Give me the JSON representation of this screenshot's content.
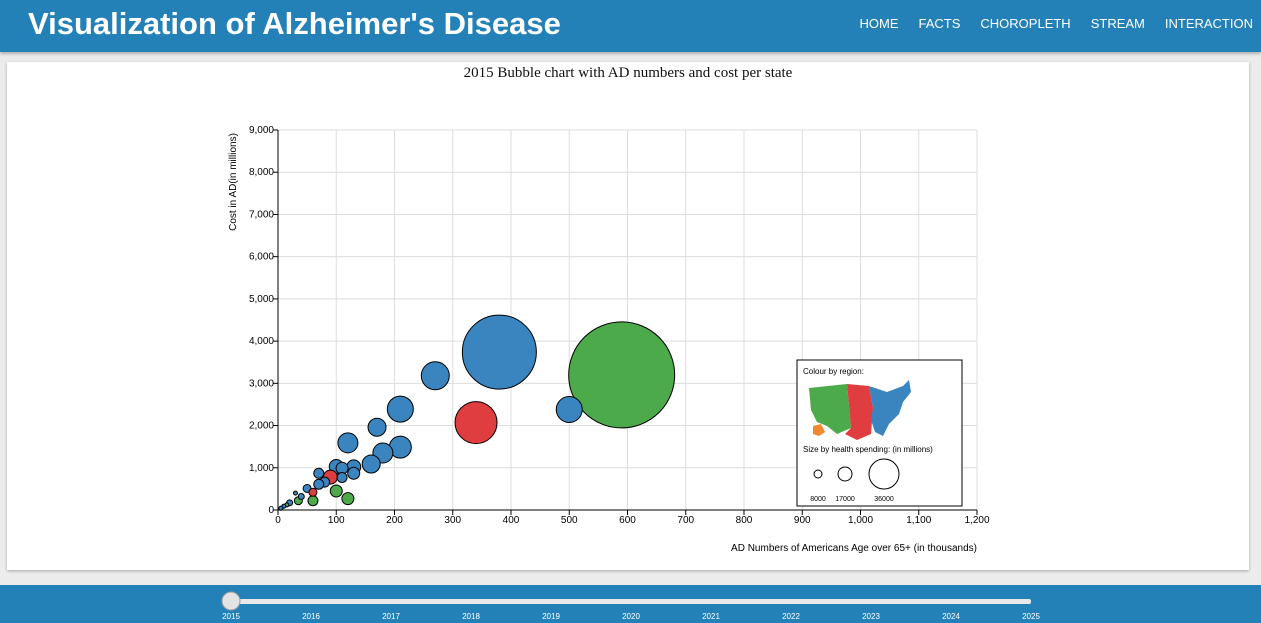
{
  "header": {
    "title": "Visualization of Alzheimer's Disease",
    "nav": [
      "HOME",
      "FACTS",
      "CHOROPLETH",
      "STREAM",
      "INTERACTION"
    ]
  },
  "colors": {
    "header_bg": "#2481b8",
    "west": "#4daa4a",
    "midwest": "#df3d3f",
    "east": "#3a85c0",
    "alaska": "#f2872d"
  },
  "chart_data": {
    "type": "scatter",
    "title": "2015 Bubble chart with AD numbers and cost per state",
    "xlabel": "AD Numbers of Americans Age over 65+ (in thousands)",
    "ylabel": "Cost in AD(in millions)",
    "xlim": [
      0,
      1200
    ],
    "ylim": [
      0,
      9000
    ],
    "xticks": [
      "0",
      "100",
      "200",
      "300",
      "400",
      "500",
      "600",
      "700",
      "800",
      "900",
      "1,000",
      "1,100",
      "1,200"
    ],
    "yticks": [
      "0",
      "1,000",
      "2,000",
      "3,000",
      "4,000",
      "5,000",
      "6,000",
      "7,000",
      "8,000",
      "9,000"
    ],
    "grid": true,
    "points": [
      {
        "x": 590,
        "y": 3200,
        "r": 53,
        "region": "west"
      },
      {
        "x": 380,
        "y": 3740,
        "r": 37,
        "region": "east"
      },
      {
        "x": 340,
        "y": 2070,
        "r": 21,
        "region": "midwest"
      },
      {
        "x": 500,
        "y": 2380,
        "r": 13,
        "region": "east"
      },
      {
        "x": 270,
        "y": 3180,
        "r": 14,
        "region": "east"
      },
      {
        "x": 210,
        "y": 2390,
        "r": 13,
        "region": "east"
      },
      {
        "x": 210,
        "y": 1490,
        "r": 11,
        "region": "east"
      },
      {
        "x": 170,
        "y": 1960,
        "r": 9,
        "region": "east"
      },
      {
        "x": 120,
        "y": 1590,
        "r": 10,
        "region": "east"
      },
      {
        "x": 180,
        "y": 1350,
        "r": 10,
        "region": "east"
      },
      {
        "x": 160,
        "y": 1090,
        "r": 9,
        "region": "east"
      },
      {
        "x": 130,
        "y": 1020,
        "r": 7,
        "region": "east"
      },
      {
        "x": 130,
        "y": 870,
        "r": 6,
        "region": "east"
      },
      {
        "x": 100,
        "y": 1030,
        "r": 7,
        "region": "east"
      },
      {
        "x": 110,
        "y": 990,
        "r": 6,
        "region": "east"
      },
      {
        "x": 90,
        "y": 780,
        "r": 7,
        "region": "midwest"
      },
      {
        "x": 110,
        "y": 770,
        "r": 5,
        "region": "east"
      },
      {
        "x": 80,
        "y": 660,
        "r": 5,
        "region": "east"
      },
      {
        "x": 70,
        "y": 610,
        "r": 5,
        "region": "east"
      },
      {
        "x": 70,
        "y": 870,
        "r": 5,
        "region": "east"
      },
      {
        "x": 50,
        "y": 510,
        "r": 4,
        "region": "east"
      },
      {
        "x": 60,
        "y": 420,
        "r": 4,
        "region": "midwest"
      },
      {
        "x": 40,
        "y": 320,
        "r": 3,
        "region": "east"
      },
      {
        "x": 30,
        "y": 400,
        "r": 2,
        "region": "east"
      },
      {
        "x": 120,
        "y": 270,
        "r": 6,
        "region": "west"
      },
      {
        "x": 100,
        "y": 450,
        "r": 6,
        "region": "west"
      },
      {
        "x": 60,
        "y": 220,
        "r": 5,
        "region": "west"
      },
      {
        "x": 35,
        "y": 220,
        "r": 4,
        "region": "west"
      },
      {
        "x": 20,
        "y": 170,
        "r": 3,
        "region": "east"
      },
      {
        "x": 15,
        "y": 120,
        "r": 2,
        "region": "west"
      },
      {
        "x": 10,
        "y": 90,
        "r": 2,
        "region": "east"
      },
      {
        "x": 5,
        "y": 40,
        "r": 2,
        "region": "east"
      }
    ],
    "legend": {
      "region_title": "Colour by region:",
      "size_title": "Size by health spending: (in millions)",
      "sizes": [
        {
          "label": "8000",
          "r": 4
        },
        {
          "label": "17000",
          "r": 7
        },
        {
          "label": "36000",
          "r": 15
        }
      ]
    }
  },
  "slider": {
    "years": [
      "2015",
      "2016",
      "2017",
      "2018",
      "2019",
      "2020",
      "2021",
      "2022",
      "2023",
      "2024",
      "2025"
    ],
    "selected": "2015"
  }
}
